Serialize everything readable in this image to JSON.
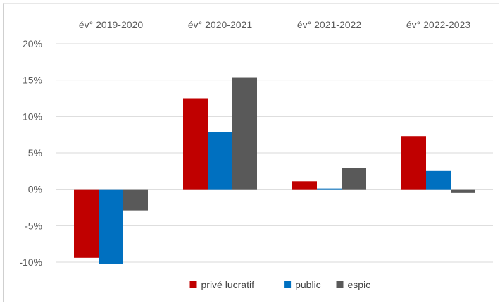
{
  "chart_data": {
    "type": "bar",
    "categories": [
      "év° 2019-2020",
      "év° 2020-2021",
      "év° 2021-2022",
      "év° 2022-2023"
    ],
    "series": [
      {
        "name": "privé lucratif",
        "color": "#c00000",
        "values": [
          -9.4,
          12.5,
          1.1,
          7.3
        ]
      },
      {
        "name": "public",
        "color": "#0070c0",
        "values": [
          -10.2,
          7.9,
          0.1,
          2.6
        ]
      },
      {
        "name": "espic",
        "color": "#595959",
        "values": [
          -2.9,
          15.4,
          2.9,
          -0.5
        ]
      }
    ],
    "ylim": [
      -10,
      20
    ],
    "yticks": [
      "-10%",
      "-5%",
      "0%",
      "5%",
      "10%",
      "15%",
      "20%"
    ],
    "grid": true,
    "legend_position": "bottom",
    "category_labels_position": "top"
  }
}
